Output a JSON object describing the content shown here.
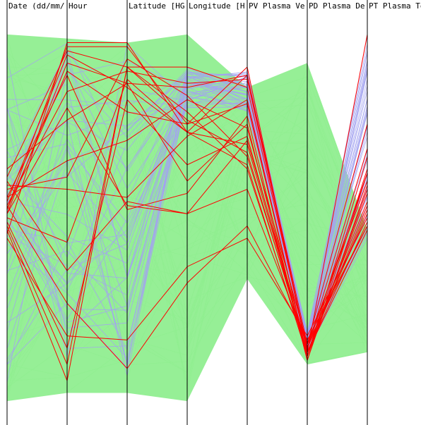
{
  "chart_data": {
    "type": "parallel-coordinates",
    "title": "",
    "axes": [
      {
        "label": "Date (dd/mm/"
      },
      {
        "label": "Hour"
      },
      {
        "label": "Latitude [HG"
      },
      {
        "label": "Longitude [H"
      },
      {
        "label": "PV Plasma Ve"
      },
      {
        "label": "PD Plasma De"
      },
      {
        "label": "PT Plasma Te"
      }
    ],
    "value_scale": "normalized 0-1 per axis (0 = bottom, 1 = top)",
    "colors": {
      "background_records": "#90ee90",
      "secondary_records": "#a3a3ef",
      "highlighted_records": "#ff0000"
    },
    "green_band": {
      "top": [
        0.95,
        0.94,
        0.93,
        0.95,
        0.82,
        0.88,
        0.47
      ],
      "bottom": [
        0.05,
        0.07,
        0.07,
        0.05,
        0.35,
        0.14,
        0.17
      ]
    },
    "blue_band": {
      "top": [
        0.9,
        0.93,
        0.93,
        0.87,
        0.86,
        0.22,
        0.95
      ],
      "bottom": [
        0.08,
        0.15,
        0.1,
        0.77,
        0.76,
        0.17,
        0.45
      ]
    },
    "red_series": [
      [
        0.46,
        0.93,
        0.93,
        0.71,
        0.85,
        0.17,
        0.95
      ],
      [
        0.51,
        0.88,
        0.83,
        0.82,
        0.85,
        0.19,
        0.73
      ],
      [
        0.6,
        0.91,
        0.87,
        0.87,
        0.82,
        0.18,
        0.67
      ],
      [
        0.58,
        0.57,
        0.55,
        0.7,
        0.79,
        0.16,
        0.65
      ],
      [
        0.52,
        0.86,
        0.76,
        0.73,
        0.78,
        0.16,
        0.62
      ],
      [
        0.55,
        0.85,
        0.52,
        0.56,
        0.75,
        0.15,
        0.61
      ],
      [
        0.62,
        0.74,
        0.83,
        0.59,
        0.73,
        0.15,
        0.58
      ],
      [
        0.49,
        0.18,
        0.79,
        0.63,
        0.7,
        0.16,
        0.57
      ],
      [
        0.51,
        0.77,
        0.53,
        0.51,
        0.69,
        0.18,
        0.54
      ],
      [
        0.54,
        0.9,
        0.82,
        0.71,
        0.68,
        0.17,
        0.52
      ],
      [
        0.47,
        0.1,
        0.87,
        0.74,
        0.66,
        0.17,
        0.53
      ],
      [
        0.53,
        0.81,
        0.86,
        0.83,
        0.84,
        0.18,
        0.61
      ],
      [
        0.55,
        0.64,
        0.69,
        0.79,
        0.72,
        0.19,
        0.59
      ],
      [
        0.45,
        0.21,
        0.2,
        0.38,
        0.45,
        0.21,
        0.5
      ],
      [
        0.53,
        0.29,
        0.13,
        0.34,
        0.48,
        0.2,
        0.48
      ],
      [
        0.59,
        0.37,
        0.54,
        0.51,
        0.57,
        0.19,
        0.48
      ],
      [
        0.48,
        0.14,
        0.87,
        0.76,
        0.62,
        0.17,
        0.49
      ],
      [
        0.57,
        0.6,
        0.89,
        0.8,
        0.65,
        0.18,
        0.51
      ],
      [
        0.52,
        0.92,
        0.92,
        0.73,
        0.87,
        0.17,
        0.47
      ],
      [
        0.5,
        0.44,
        0.84,
        0.71,
        0.63,
        0.16,
        0.56
      ]
    ]
  }
}
